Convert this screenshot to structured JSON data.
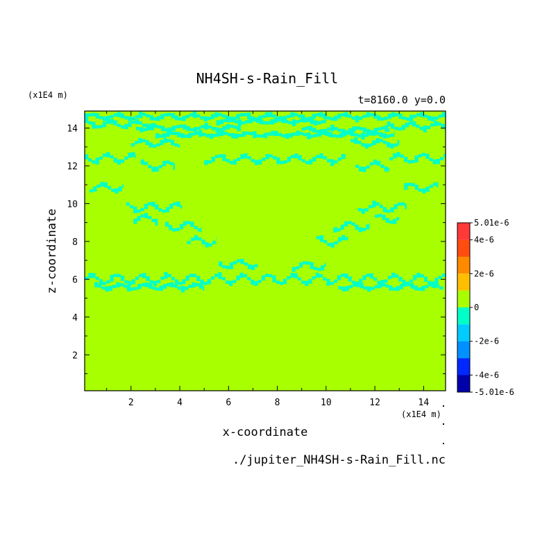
{
  "chart_data": {
    "type": "heatmap",
    "title": "NH4SH-s-Rain_Fill",
    "subtitle": "t=8160.0 y=0.0",
    "xlabel": "x-coordinate",
    "ylabel": "z-coordinate",
    "x_unit": "(x1E4 m)",
    "z_unit": "(x1E4 m)",
    "source_file": "./jupiter_NH4SH-s-Rain_Fill.nc",
    "xlim": [
      0.1,
      14.9
    ],
    "ylim": [
      0.1,
      14.9
    ],
    "x_ticks": [
      "2",
      "4",
      "6",
      "8",
      "10",
      "12",
      "14"
    ],
    "y_ticks": [
      "2",
      "4",
      "6",
      "8",
      "10",
      "12",
      "14"
    ],
    "x_tick_values": [
      2,
      4,
      6,
      8,
      10,
      12,
      14
    ],
    "y_tick_values": [
      2,
      4,
      6,
      8,
      10,
      12,
      14
    ],
    "background_level": 0,
    "colorbar": {
      "tick_labels": [
        "5.01e-6",
        "4e-6",
        "2e-6",
        "0",
        "-2e-6",
        "-4e-6",
        "-5.01e-6"
      ],
      "tick_values": [
        5.01e-06,
        4e-06,
        2e-06,
        0,
        -2e-06,
        -4e-06,
        -5.01e-06
      ],
      "levels": [
        {
          "min": 4e-06,
          "max": 5.01e-06,
          "color": "#ff3838"
        },
        {
          "min": 3e-06,
          "max": 4e-06,
          "color": "#ff4c0f"
        },
        {
          "min": 2e-06,
          "max": 3e-06,
          "color": "#ff8a00"
        },
        {
          "min": 1e-06,
          "max": 2e-06,
          "color": "#ffbf00"
        },
        {
          "min": 0,
          "max": 1e-06,
          "color": "#a8ff00"
        },
        {
          "min": -1e-06,
          "max": 0,
          "color": "#00ffc8"
        },
        {
          "min": -2e-06,
          "max": -1e-06,
          "color": "#00ccff"
        },
        {
          "min": -3e-06,
          "max": -2e-06,
          "color": "#0090ff"
        },
        {
          "min": -4e-06,
          "max": -3e-06,
          "color": "#0028ff"
        },
        {
          "min": -5.01e-06,
          "max": -4e-06,
          "color": "#0000aa"
        }
      ]
    },
    "negative_bands": [
      {
        "x": [
          0.1,
          14.9
        ],
        "z": 14.6,
        "amp": 0.12
      },
      {
        "x": [
          0.1,
          3.0
        ],
        "z": 14.2,
        "amp": 0.15
      },
      {
        "x": [
          2.2,
          6.5
        ],
        "z": 14.0,
        "amp": 0.1
      },
      {
        "x": [
          5.5,
          10.0
        ],
        "z": 14.35,
        "amp": 0.08
      },
      {
        "x": [
          9.0,
          12.6
        ],
        "z": 13.9,
        "amp": 0.1
      },
      {
        "x": [
          12.5,
          14.9
        ],
        "z": 14.1,
        "amp": 0.15
      },
      {
        "x": [
          3.0,
          12.8
        ],
        "z": 13.65,
        "amp": 0.08
      },
      {
        "x": [
          2.0,
          4.0
        ],
        "z": 13.2,
        "amp": 0.15
      },
      {
        "x": [
          11.0,
          13.0
        ],
        "z": 13.2,
        "amp": 0.15
      },
      {
        "x": [
          0.1,
          2.2
        ],
        "z": 12.4,
        "amp": 0.2
      },
      {
        "x": [
          5.0,
          10.8
        ],
        "z": 12.35,
        "amp": 0.18
      },
      {
        "x": [
          12.6,
          14.9
        ],
        "z": 12.4,
        "amp": 0.2
      },
      {
        "x": [
          2.4,
          3.8
        ],
        "z": 12.0,
        "amp": 0.2
      },
      {
        "x": [
          11.2,
          12.6
        ],
        "z": 12.0,
        "amp": 0.2
      },
      {
        "x": [
          0.3,
          1.7
        ],
        "z": 10.85,
        "amp": 0.18
      },
      {
        "x": [
          13.2,
          14.6
        ],
        "z": 10.85,
        "amp": 0.18
      },
      {
        "x": [
          1.8,
          4.1
        ],
        "z": 9.8,
        "amp": 0.2
      },
      {
        "x": [
          11.3,
          13.3
        ],
        "z": 9.8,
        "amp": 0.2
      },
      {
        "x": [
          2.1,
          3.1
        ],
        "z": 9.2,
        "amp": 0.18
      },
      {
        "x": [
          12.0,
          13.0
        ],
        "z": 9.2,
        "amp": 0.18
      },
      {
        "x": [
          3.4,
          4.9
        ],
        "z": 8.8,
        "amp": 0.2
      },
      {
        "x": [
          10.3,
          11.8
        ],
        "z": 8.8,
        "amp": 0.2
      },
      {
        "x": [
          4.3,
          5.5
        ],
        "z": 8.0,
        "amp": 0.2
      },
      {
        "x": [
          9.6,
          10.9
        ],
        "z": 8.0,
        "amp": 0.2
      },
      {
        "x": [
          5.6,
          7.2
        ],
        "z": 6.8,
        "amp": 0.18
      },
      {
        "x": [
          8.6,
          10.0
        ],
        "z": 6.7,
        "amp": 0.18
      },
      {
        "x": [
          0.1,
          14.9
        ],
        "z": 6.0,
        "amp": 0.22
      },
      {
        "x": [
          0.5,
          5.0
        ],
        "z": 5.6,
        "amp": 0.12
      },
      {
        "x": [
          10.5,
          14.8
        ],
        "z": 5.6,
        "amp": 0.12
      }
    ]
  }
}
